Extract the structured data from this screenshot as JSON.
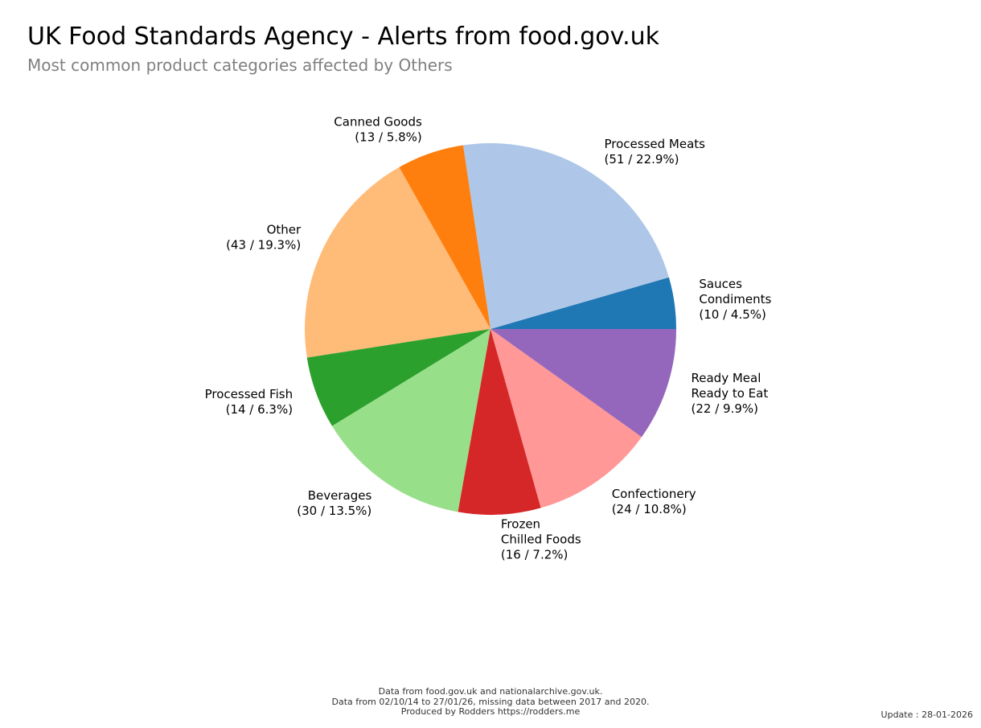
{
  "header": {
    "title": "UK Food Standards Agency - Alerts from food.gov.uk",
    "subtitle": "Most common product categories affected by Others"
  },
  "footer": {
    "lines": [
      "Data from food.gov.uk and nationalarchive.gov.uk.",
      "Data from 02/10/14 to 27/01/26, missing data between 2017 and 2020.",
      "Produced by Rodders https://rodders.me"
    ],
    "update": "Update : 28-01-2026"
  },
  "chart_data": {
    "type": "pie",
    "title": "UK Food Standards Agency - Alerts from food.gov.uk",
    "subtitle": "Most common product categories affected by Others",
    "start_angle_deg": 0,
    "direction": "counterclockwise",
    "slices": [
      {
        "label": [
          "Sauces",
          "Condiments"
        ],
        "value": 10,
        "percent_label": "(10 / 4.5%)",
        "color": "#1f77b4"
      },
      {
        "label": [
          "Processed Meats"
        ],
        "value": 51,
        "percent_label": "(51 / 22.9%)",
        "color": "#aec7e8"
      },
      {
        "label": [
          "Canned Goods"
        ],
        "value": 13,
        "percent_label": "(13 / 5.8%)",
        "color": "#ff7f0e"
      },
      {
        "label": [
          "Other"
        ],
        "value": 43,
        "percent_label": "(43 / 19.3%)",
        "color": "#ffbb78"
      },
      {
        "label": [
          "Processed Fish"
        ],
        "value": 14,
        "percent_label": "(14 / 6.3%)",
        "color": "#2ca02c"
      },
      {
        "label": [
          "Beverages"
        ],
        "value": 30,
        "percent_label": "(30 / 13.5%)",
        "color": "#98df8a"
      },
      {
        "label": [
          "Frozen",
          "Chilled Foods"
        ],
        "value": 16,
        "percent_label": "(16 / 7.2%)",
        "color": "#d62728"
      },
      {
        "label": [
          "Confectionery"
        ],
        "value": 24,
        "percent_label": "(24 / 10.8%)",
        "color": "#ff9896"
      },
      {
        "label": [
          "Ready Meal",
          "Ready to Eat"
        ],
        "value": 22,
        "percent_label": "(22 / 9.9%)",
        "color": "#9467bd"
      }
    ]
  }
}
